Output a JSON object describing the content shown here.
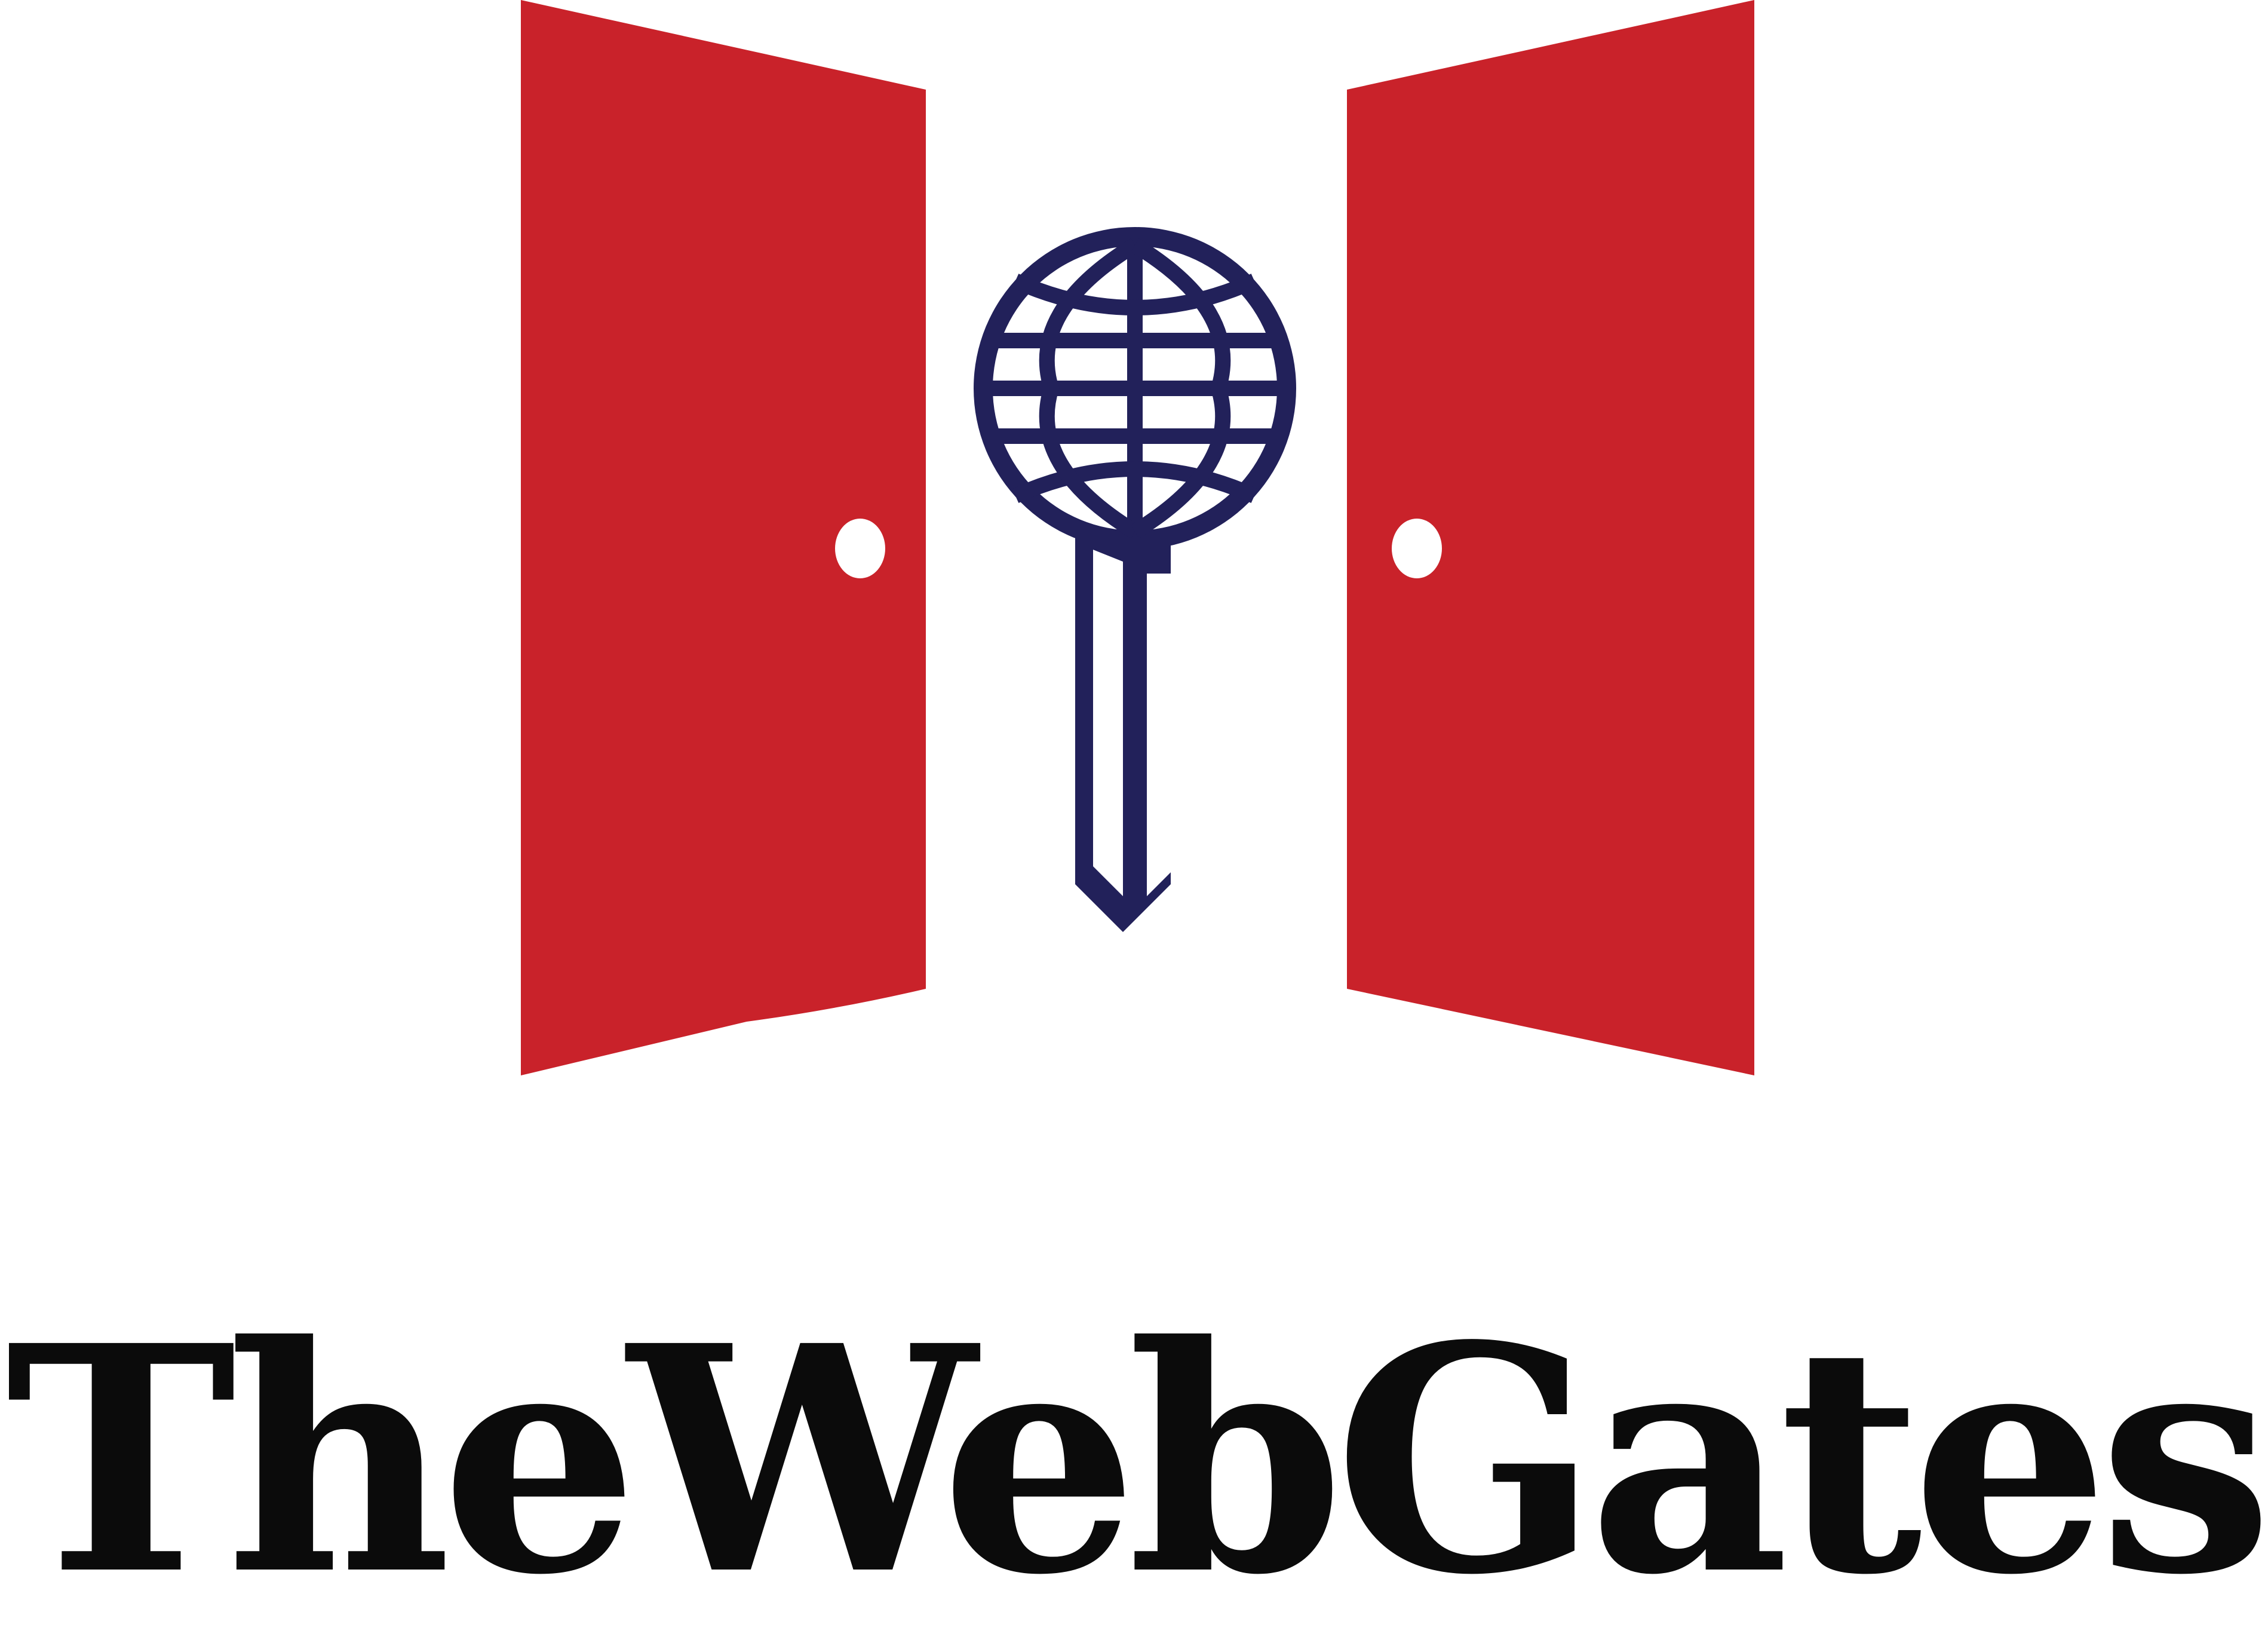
{
  "brand": {
    "name": "TheWebGates",
    "colors": {
      "door": "#c9222a",
      "key": "#22215a",
      "text": "#0b0b0b",
      "background": "#ffffff",
      "knob": "#ffffff"
    }
  },
  "icons": {
    "left_door": "door-icon",
    "right_door": "door-icon",
    "key": "globe-key-icon"
  }
}
